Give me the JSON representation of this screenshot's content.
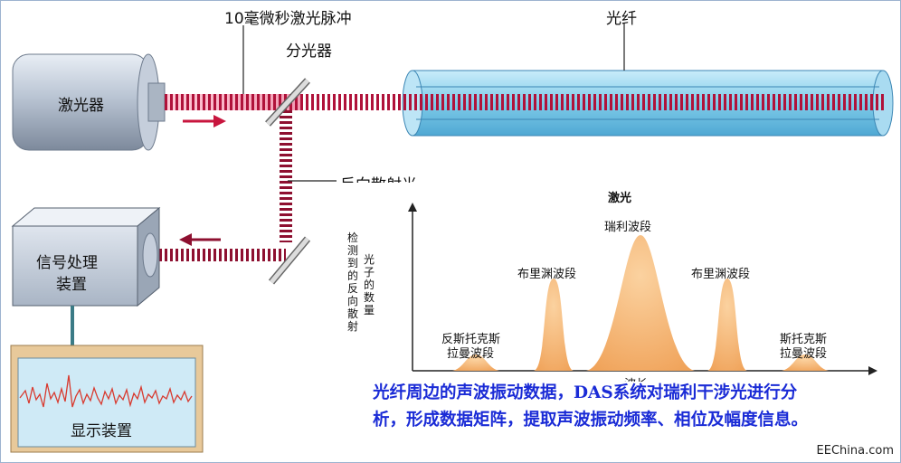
{
  "labels": {
    "pulse": "10毫微秒激光脉冲",
    "fiber": "光纤",
    "splitter": "分光器",
    "laser": "激光器",
    "backscatter": "反向散射光",
    "processor_line1": "信号处理",
    "processor_line2": "装置",
    "display": "显示装置"
  },
  "spectrum": {
    "title": "激光",
    "ylabel_line1": "检测到的反向散射",
    "ylabel_line2": "光子的数量",
    "xlabel": "波长",
    "peaks": {
      "rayleigh": "瑞利波段",
      "brillouin_left": "布里渊波段",
      "brillouin_right": "布里渊波段",
      "raman_left_line1": "反斯托克斯",
      "raman_left_line2": "拉曼波段",
      "raman_right_line1": "斯托克斯",
      "raman_right_line2": "拉曼波段"
    }
  },
  "caption": {
    "line1": "光纤周边的声波振动数据，DAS系统对瑞利干涉光进行分",
    "line2": "析，形成数据矩阵，提取声波振动频率、相位及幅度信息。"
  },
  "watermark": "EEChina.com",
  "colors": {
    "pulse_red": "#b0123a",
    "fiber_blue": "#8fd3ef",
    "peak_orange": "#f4b06a",
    "caption_blue": "#1a2bd6"
  }
}
